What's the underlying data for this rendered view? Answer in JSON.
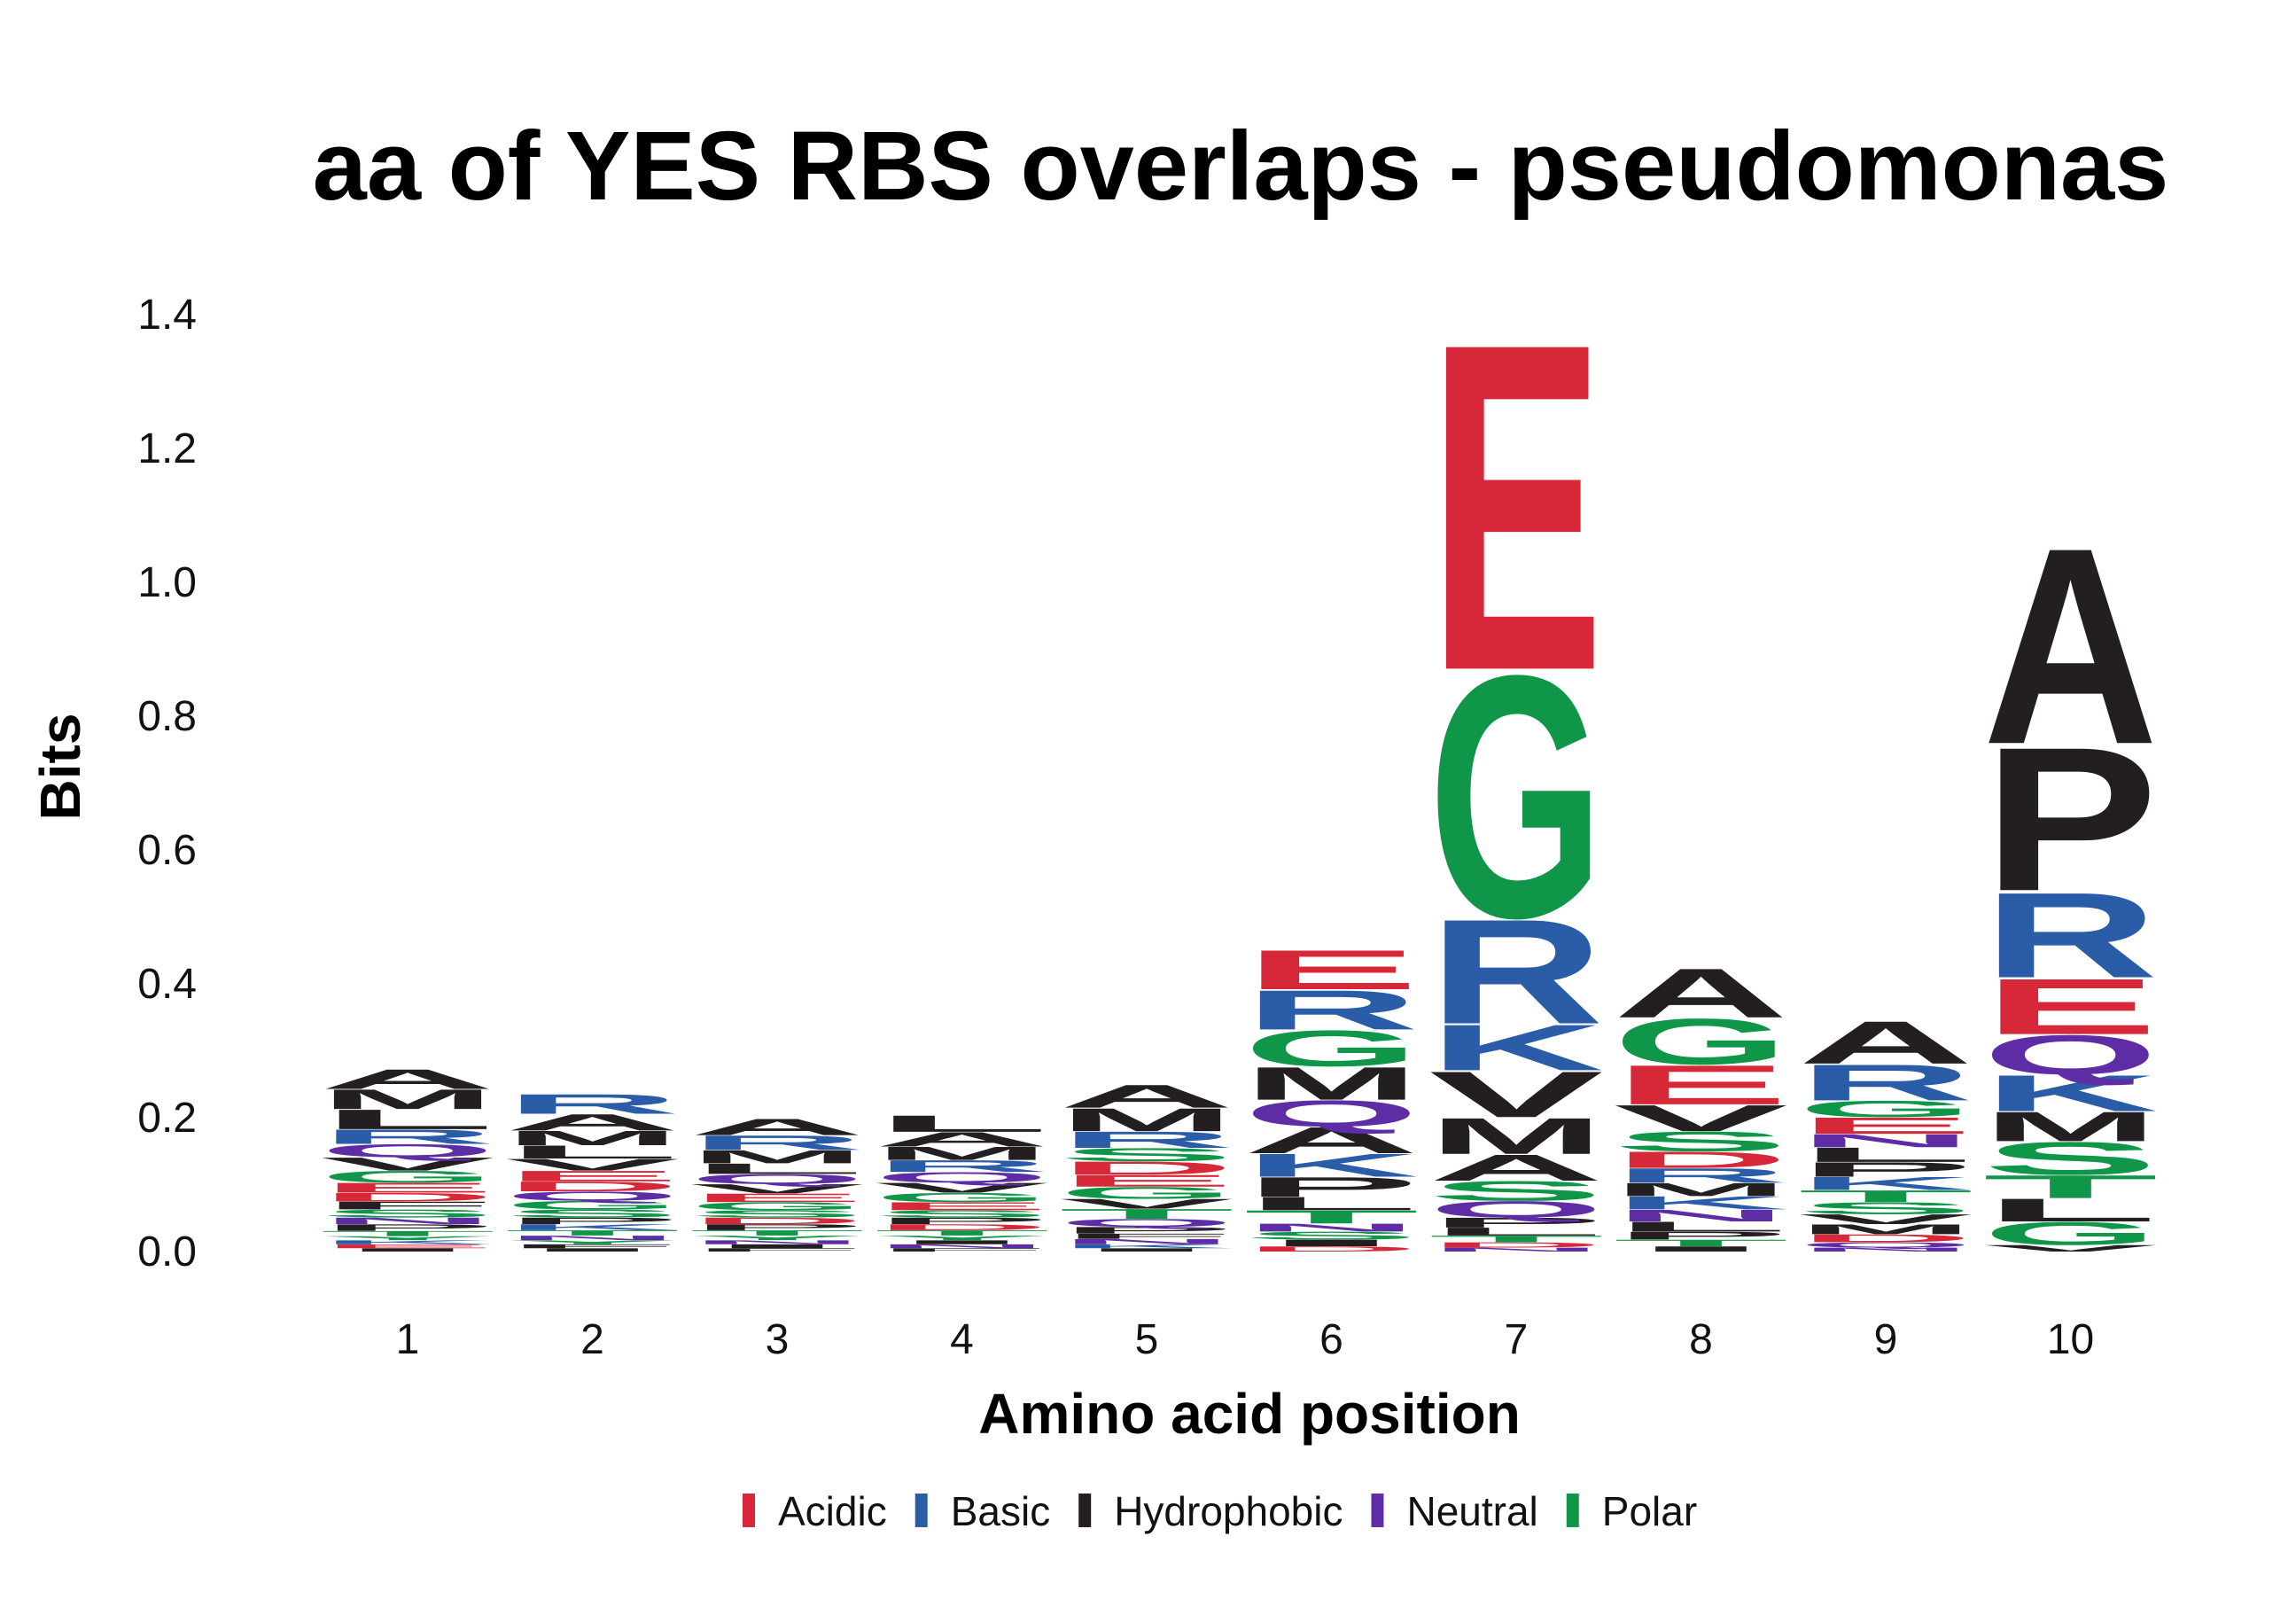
{
  "chart_data": {
    "type": "sequence-logo",
    "title": "aa of YES RBS overlaps - pseudomonas",
    "xlabel": "Amino acid position",
    "ylabel": "Bits",
    "ylim": [
      0,
      1.45
    ],
    "yticks": [
      "0.0",
      "0.2",
      "0.4",
      "0.6",
      "0.8",
      "1.0",
      "1.2",
      "1.4"
    ],
    "categories": [
      "1",
      "2",
      "3",
      "4",
      "5",
      "6",
      "7",
      "8",
      "9",
      "10"
    ],
    "groups": [
      {
        "name": "Acidic",
        "color": "#d62839"
      },
      {
        "name": "Basic",
        "color": "#2a5ca8"
      },
      {
        "name": "Hydrophobic",
        "color": "#231f20"
      },
      {
        "name": "Neutral",
        "color": "#5e2ca5"
      },
      {
        "name": "Polar",
        "color": "#109648"
      }
    ],
    "residue_groups": {
      "D": "Acidic",
      "E": "Acidic",
      "K": "Basic",
      "R": "Basic",
      "H": "Basic",
      "A": "Hydrophobic",
      "V": "Hydrophobic",
      "L": "Hydrophobic",
      "I": "Hydrophobic",
      "P": "Hydrophobic",
      "M": "Hydrophobic",
      "F": "Hydrophobic",
      "W": "Hydrophobic",
      "Q": "Neutral",
      "N": "Neutral",
      "G": "Polar",
      "S": "Polar",
      "T": "Polar",
      "Y": "Polar",
      "C": "Polar"
    },
    "stacks": [
      {
        "position": "1",
        "letters": [
          {
            "aa": "I",
            "bits": 0.005
          },
          {
            "aa": "E",
            "bits": 0.006
          },
          {
            "aa": "K",
            "bits": 0.006
          },
          {
            "aa": "Y",
            "bits": 0.006
          },
          {
            "aa": "T",
            "bits": 0.008
          },
          {
            "aa": "P",
            "bits": 0.01
          },
          {
            "aa": "N",
            "bits": 0.01
          },
          {
            "aa": "S",
            "bits": 0.012
          },
          {
            "aa": "F",
            "bits": 0.012
          },
          {
            "aa": "D",
            "bits": 0.013
          },
          {
            "aa": "E",
            "bits": 0.015
          },
          {
            "aa": "G",
            "bits": 0.018
          },
          {
            "aa": "V",
            "bits": 0.02
          },
          {
            "aa": "Q",
            "bits": 0.02
          },
          {
            "aa": "R",
            "bits": 0.022
          },
          {
            "aa": "L",
            "bits": 0.03
          },
          {
            "aa": "M",
            "bits": 0.03
          },
          {
            "aa": "A",
            "bits": 0.03
          }
        ]
      },
      {
        "position": "2",
        "letters": [
          {
            "aa": "I",
            "bits": 0.005
          },
          {
            "aa": "F",
            "bits": 0.006
          },
          {
            "aa": "Y",
            "bits": 0.006
          },
          {
            "aa": "N",
            "bits": 0.007
          },
          {
            "aa": "T",
            "bits": 0.008
          },
          {
            "aa": "K",
            "bits": 0.009
          },
          {
            "aa": "P",
            "bits": 0.01
          },
          {
            "aa": "S",
            "bits": 0.012
          },
          {
            "aa": "G",
            "bits": 0.013
          },
          {
            "aa": "Q",
            "bits": 0.014
          },
          {
            "aa": "D",
            "bits": 0.015
          },
          {
            "aa": "E",
            "bits": 0.016
          },
          {
            "aa": "V",
            "bits": 0.018
          },
          {
            "aa": "L",
            "bits": 0.02
          },
          {
            "aa": "M",
            "bits": 0.022
          },
          {
            "aa": "A",
            "bits": 0.025
          },
          {
            "aa": "R",
            "bits": 0.03
          }
        ]
      },
      {
        "position": "3",
        "letters": [
          {
            "aa": "F",
            "bits": 0.005
          },
          {
            "aa": "I",
            "bits": 0.006
          },
          {
            "aa": "N",
            "bits": 0.006
          },
          {
            "aa": "Y",
            "bits": 0.007
          },
          {
            "aa": "T",
            "bits": 0.008
          },
          {
            "aa": "P",
            "bits": 0.009
          },
          {
            "aa": "D",
            "bits": 0.01
          },
          {
            "aa": "S",
            "bits": 0.011
          },
          {
            "aa": "G",
            "bits": 0.012
          },
          {
            "aa": "E",
            "bits": 0.013
          },
          {
            "aa": "V",
            "bits": 0.014
          },
          {
            "aa": "Q",
            "bits": 0.015
          },
          {
            "aa": "L",
            "bits": 0.016
          },
          {
            "aa": "M",
            "bits": 0.02
          },
          {
            "aa": "R",
            "bits": 0.022
          },
          {
            "aa": "A",
            "bits": 0.025
          }
        ]
      },
      {
        "position": "4",
        "letters": [
          {
            "aa": "F",
            "bits": 0.005
          },
          {
            "aa": "N",
            "bits": 0.006
          },
          {
            "aa": "I",
            "bits": 0.006
          },
          {
            "aa": "Y",
            "bits": 0.007
          },
          {
            "aa": "T",
            "bits": 0.008
          },
          {
            "aa": "D",
            "bits": 0.009
          },
          {
            "aa": "P",
            "bits": 0.01
          },
          {
            "aa": "S",
            "bits": 0.011
          },
          {
            "aa": "E",
            "bits": 0.012
          },
          {
            "aa": "G",
            "bits": 0.014
          },
          {
            "aa": "V",
            "bits": 0.015
          },
          {
            "aa": "Q",
            "bits": 0.016
          },
          {
            "aa": "R",
            "bits": 0.018
          },
          {
            "aa": "M",
            "bits": 0.02
          },
          {
            "aa": "A",
            "bits": 0.022
          },
          {
            "aa": "L",
            "bits": 0.025
          }
        ]
      },
      {
        "position": "5",
        "letters": [
          {
            "aa": "I",
            "bits": 0.005
          },
          {
            "aa": "K",
            "bits": 0.006
          },
          {
            "aa": "N",
            "bits": 0.008
          },
          {
            "aa": "F",
            "bits": 0.008
          },
          {
            "aa": "P",
            "bits": 0.01
          },
          {
            "aa": "Q",
            "bits": 0.012
          },
          {
            "aa": "T",
            "bits": 0.015
          },
          {
            "aa": "V",
            "bits": 0.015
          },
          {
            "aa": "G",
            "bits": 0.018
          },
          {
            "aa": "E",
            "bits": 0.018
          },
          {
            "aa": "D",
            "bits": 0.02
          },
          {
            "aa": "S",
            "bits": 0.02
          },
          {
            "aa": "R",
            "bits": 0.025
          },
          {
            "aa": "M",
            "bits": 0.035
          },
          {
            "aa": "A",
            "bits": 0.035
          }
        ]
      },
      {
        "position": "6",
        "letters": [
          {
            "aa": "D",
            "bits": 0.008
          },
          {
            "aa": "I",
            "bits": 0.01
          },
          {
            "aa": "S",
            "bits": 0.012
          },
          {
            "aa": "N",
            "bits": 0.012
          },
          {
            "aa": "T",
            "bits": 0.02
          },
          {
            "aa": "L",
            "bits": 0.02
          },
          {
            "aa": "P",
            "bits": 0.03
          },
          {
            "aa": "K",
            "bits": 0.035
          },
          {
            "aa": "A",
            "bits": 0.04
          },
          {
            "aa": "Q",
            "bits": 0.04
          },
          {
            "aa": "M",
            "bits": 0.05
          },
          {
            "aa": "G",
            "bits": 0.055
          },
          {
            "aa": "R",
            "bits": 0.06
          },
          {
            "aa": "E",
            "bits": 0.06
          }
        ]
      },
      {
        "position": "7",
        "letters": [
          {
            "aa": "N",
            "bits": 0.006
          },
          {
            "aa": "D",
            "bits": 0.008
          },
          {
            "aa": "T",
            "bits": 0.01
          },
          {
            "aa": "L",
            "bits": 0.012
          },
          {
            "aa": "P",
            "bits": 0.015
          },
          {
            "aa": "Q",
            "bits": 0.025
          },
          {
            "aa": "S",
            "bits": 0.03
          },
          {
            "aa": "A",
            "bits": 0.04
          },
          {
            "aa": "M",
            "bits": 0.055
          },
          {
            "aa": "V",
            "bits": 0.07
          },
          {
            "aa": "K",
            "bits": 0.07
          },
          {
            "aa": "R",
            "bits": 0.16
          },
          {
            "aa": "G",
            "bits": 0.37
          },
          {
            "aa": "E",
            "bits": 0.5
          }
        ]
      },
      {
        "position": "8",
        "letters": [
          {
            "aa": "I",
            "bits": 0.008
          },
          {
            "aa": "T",
            "bits": 0.01
          },
          {
            "aa": "P",
            "bits": 0.012
          },
          {
            "aa": "L",
            "bits": 0.015
          },
          {
            "aa": "N",
            "bits": 0.018
          },
          {
            "aa": "K",
            "bits": 0.02
          },
          {
            "aa": "M",
            "bits": 0.02
          },
          {
            "aa": "R",
            "bits": 0.022
          },
          {
            "aa": "D",
            "bits": 0.025
          },
          {
            "aa": "S",
            "bits": 0.03
          },
          {
            "aa": "V",
            "bits": 0.04
          },
          {
            "aa": "E",
            "bits": 0.06
          },
          {
            "aa": "G",
            "bits": 0.07
          },
          {
            "aa": "A",
            "bits": 0.075
          }
        ]
      },
      {
        "position": "9",
        "letters": [
          {
            "aa": "N",
            "bits": 0.006
          },
          {
            "aa": "Q",
            "bits": 0.008
          },
          {
            "aa": "D",
            "bits": 0.012
          },
          {
            "aa": "M",
            "bits": 0.015
          },
          {
            "aa": "V",
            "bits": 0.015
          },
          {
            "aa": "S",
            "bits": 0.018
          },
          {
            "aa": "T",
            "bits": 0.018
          },
          {
            "aa": "K",
            "bits": 0.02
          },
          {
            "aa": "P",
            "bits": 0.022
          },
          {
            "aa": "L",
            "bits": 0.022
          },
          {
            "aa": "N",
            "bits": 0.02
          },
          {
            "aa": "E",
            "bits": 0.025
          },
          {
            "aa": "G",
            "bits": 0.025
          },
          {
            "aa": "R",
            "bits": 0.055
          },
          {
            "aa": "A",
            "bits": 0.065
          }
        ]
      },
      {
        "position": "10",
        "letters": [
          {
            "aa": "V",
            "bits": 0.01
          },
          {
            "aa": "G",
            "bits": 0.035
          },
          {
            "aa": "L",
            "bits": 0.035
          },
          {
            "aa": "T",
            "bits": 0.035
          },
          {
            "aa": "S",
            "bits": 0.05
          },
          {
            "aa": "M",
            "bits": 0.045
          },
          {
            "aa": "K",
            "bits": 0.055
          },
          {
            "aa": "Q",
            "bits": 0.06
          },
          {
            "aa": "E",
            "bits": 0.085
          },
          {
            "aa": "R",
            "bits": 0.13
          },
          {
            "aa": "P",
            "bits": 0.22
          },
          {
            "aa": "A",
            "bits": 0.3
          }
        ]
      }
    ]
  }
}
